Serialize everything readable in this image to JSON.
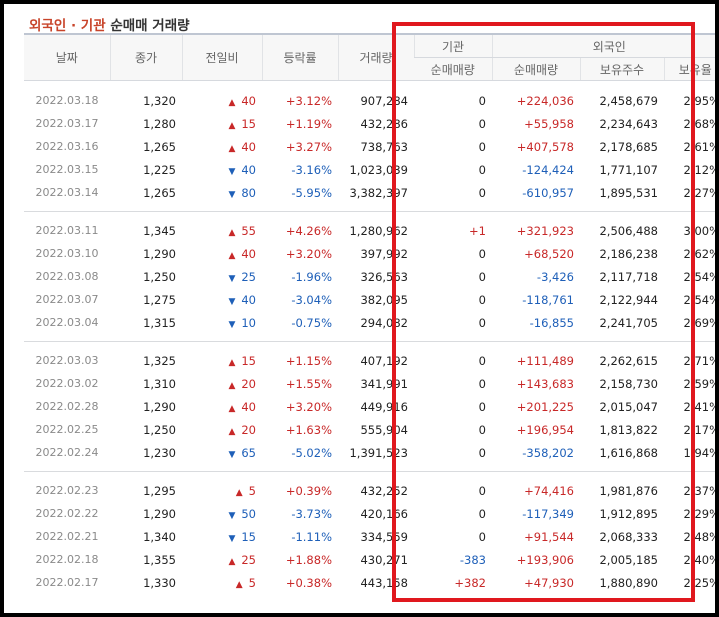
{
  "title": {
    "accent": "외국인 · 기관",
    "rest": "순매매 거래량"
  },
  "headers": {
    "date": "날짜",
    "close": "종가",
    "change": "전일비",
    "rate": "등락률",
    "volume": "거래량",
    "inst_group": "기관",
    "inst_net": "순매매량",
    "foreign_group": "외국인",
    "foreign_net": "순매매량",
    "foreign_shares": "보유주수",
    "foreign_ratio": "보유율"
  },
  "colors": {
    "up": "#c82828",
    "down": "#1e5fb8",
    "highlight_box": "#e0181e"
  },
  "groups": [
    [
      {
        "date": "2022.03.18",
        "close": "1,320",
        "dir": "up",
        "change": "40",
        "rate": "+3.12%",
        "volume": "907,284",
        "inst": "0",
        "inst_dir": "flat",
        "foreign": "+224,036",
        "foreign_dir": "up",
        "shares": "2,458,679",
        "ratio": "2.95%"
      },
      {
        "date": "2022.03.17",
        "close": "1,280",
        "dir": "up",
        "change": "15",
        "rate": "+1.19%",
        "volume": "432,286",
        "inst": "0",
        "inst_dir": "flat",
        "foreign": "+55,958",
        "foreign_dir": "up",
        "shares": "2,234,643",
        "ratio": "2.68%"
      },
      {
        "date": "2022.03.16",
        "close": "1,265",
        "dir": "up",
        "change": "40",
        "rate": "+3.27%",
        "volume": "738,763",
        "inst": "0",
        "inst_dir": "flat",
        "foreign": "+407,578",
        "foreign_dir": "up",
        "shares": "2,178,685",
        "ratio": "2.61%"
      },
      {
        "date": "2022.03.15",
        "close": "1,225",
        "dir": "down",
        "change": "40",
        "rate": "-3.16%",
        "volume": "1,023,039",
        "inst": "0",
        "inst_dir": "flat",
        "foreign": "-124,424",
        "foreign_dir": "down",
        "shares": "1,771,107",
        "ratio": "2.12%"
      },
      {
        "date": "2022.03.14",
        "close": "1,265",
        "dir": "down",
        "change": "80",
        "rate": "-5.95%",
        "volume": "3,382,397",
        "inst": "0",
        "inst_dir": "flat",
        "foreign": "-610,957",
        "foreign_dir": "down",
        "shares": "1,895,531",
        "ratio": "2.27%"
      }
    ],
    [
      {
        "date": "2022.03.11",
        "close": "1,345",
        "dir": "up",
        "change": "55",
        "rate": "+4.26%",
        "volume": "1,280,962",
        "inst": "+1",
        "inst_dir": "up",
        "foreign": "+321,923",
        "foreign_dir": "up",
        "shares": "2,506,488",
        "ratio": "3.00%"
      },
      {
        "date": "2022.03.10",
        "close": "1,290",
        "dir": "up",
        "change": "40",
        "rate": "+3.20%",
        "volume": "397,992",
        "inst": "0",
        "inst_dir": "flat",
        "foreign": "+68,520",
        "foreign_dir": "up",
        "shares": "2,186,238",
        "ratio": "2.62%"
      },
      {
        "date": "2022.03.08",
        "close": "1,250",
        "dir": "down",
        "change": "25",
        "rate": "-1.96%",
        "volume": "326,563",
        "inst": "0",
        "inst_dir": "flat",
        "foreign": "-3,426",
        "foreign_dir": "down",
        "shares": "2,117,718",
        "ratio": "2.54%"
      },
      {
        "date": "2022.03.07",
        "close": "1,275",
        "dir": "down",
        "change": "40",
        "rate": "-3.04%",
        "volume": "382,095",
        "inst": "0",
        "inst_dir": "flat",
        "foreign": "-118,761",
        "foreign_dir": "down",
        "shares": "2,122,944",
        "ratio": "2.54%"
      },
      {
        "date": "2022.03.04",
        "close": "1,315",
        "dir": "down",
        "change": "10",
        "rate": "-0.75%",
        "volume": "294,082",
        "inst": "0",
        "inst_dir": "flat",
        "foreign": "-16,855",
        "foreign_dir": "down",
        "shares": "2,241,705",
        "ratio": "2.69%"
      }
    ],
    [
      {
        "date": "2022.03.03",
        "close": "1,325",
        "dir": "up",
        "change": "15",
        "rate": "+1.15%",
        "volume": "407,192",
        "inst": "0",
        "inst_dir": "flat",
        "foreign": "+111,489",
        "foreign_dir": "up",
        "shares": "2,262,615",
        "ratio": "2.71%"
      },
      {
        "date": "2022.03.02",
        "close": "1,310",
        "dir": "up",
        "change": "20",
        "rate": "+1.55%",
        "volume": "341,991",
        "inst": "0",
        "inst_dir": "flat",
        "foreign": "+143,683",
        "foreign_dir": "up",
        "shares": "2,158,730",
        "ratio": "2.59%"
      },
      {
        "date": "2022.02.28",
        "close": "1,290",
        "dir": "up",
        "change": "40",
        "rate": "+3.20%",
        "volume": "449,916",
        "inst": "0",
        "inst_dir": "flat",
        "foreign": "+201,225",
        "foreign_dir": "up",
        "shares": "2,015,047",
        "ratio": "2.41%"
      },
      {
        "date": "2022.02.25",
        "close": "1,250",
        "dir": "up",
        "change": "20",
        "rate": "+1.63%",
        "volume": "555,904",
        "inst": "0",
        "inst_dir": "flat",
        "foreign": "+196,954",
        "foreign_dir": "up",
        "shares": "1,813,822",
        "ratio": "2.17%"
      },
      {
        "date": "2022.02.24",
        "close": "1,230",
        "dir": "down",
        "change": "65",
        "rate": "-5.02%",
        "volume": "1,391,523",
        "inst": "0",
        "inst_dir": "flat",
        "foreign": "-358,202",
        "foreign_dir": "down",
        "shares": "1,616,868",
        "ratio": "1.94%"
      }
    ],
    [
      {
        "date": "2022.02.23",
        "close": "1,295",
        "dir": "up",
        "change": "5",
        "rate": "+0.39%",
        "volume": "432,252",
        "inst": "0",
        "inst_dir": "flat",
        "foreign": "+74,416",
        "foreign_dir": "up",
        "shares": "1,981,876",
        "ratio": "2.37%"
      },
      {
        "date": "2022.02.22",
        "close": "1,290",
        "dir": "down",
        "change": "50",
        "rate": "-3.73%",
        "volume": "420,166",
        "inst": "0",
        "inst_dir": "flat",
        "foreign": "-117,349",
        "foreign_dir": "down",
        "shares": "1,912,895",
        "ratio": "2.29%"
      },
      {
        "date": "2022.02.21",
        "close": "1,340",
        "dir": "down",
        "change": "15",
        "rate": "-1.11%",
        "volume": "334,559",
        "inst": "0",
        "inst_dir": "flat",
        "foreign": "+91,544",
        "foreign_dir": "up",
        "shares": "2,068,333",
        "ratio": "2.48%"
      },
      {
        "date": "2022.02.18",
        "close": "1,355",
        "dir": "up",
        "change": "25",
        "rate": "+1.88%",
        "volume": "430,271",
        "inst": "-383",
        "inst_dir": "down",
        "foreign": "+193,906",
        "foreign_dir": "up",
        "shares": "2,005,185",
        "ratio": "2.40%"
      },
      {
        "date": "2022.02.17",
        "close": "1,330",
        "dir": "up",
        "change": "5",
        "rate": "+0.38%",
        "volume": "443,158",
        "inst": "+382",
        "inst_dir": "up",
        "foreign": "+47,930",
        "foreign_dir": "up",
        "shares": "1,880,890",
        "ratio": "2.25%"
      }
    ]
  ]
}
